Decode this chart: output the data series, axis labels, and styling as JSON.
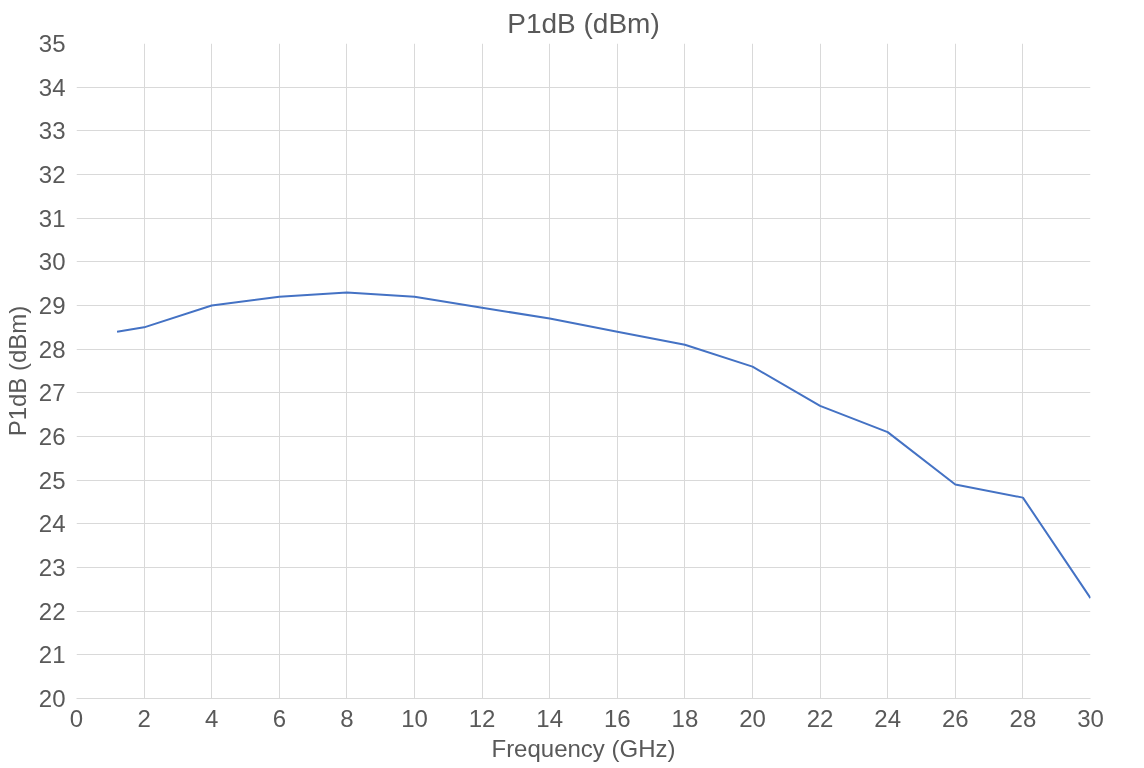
{
  "chart_data": {
    "type": "line",
    "title": "P1dB (dBm)",
    "xlabel": "Frequency (GHz)",
    "ylabel": "P1dB (dBm)",
    "x": [
      1.2,
      2,
      4,
      6,
      8,
      10,
      12,
      14,
      16,
      18,
      20,
      22,
      24,
      26,
      28,
      30
    ],
    "series": [
      {
        "color": "#4472c4",
        "values": [
          28.4,
          28.5,
          29.0,
          29.2,
          29.3,
          29.2,
          28.95,
          28.7,
          28.4,
          28.1,
          27.6,
          26.7,
          26.1,
          24.9,
          24.6,
          22.3
        ]
      }
    ],
    "xlim": [
      0,
      30
    ],
    "xticks": [
      0,
      2,
      4,
      6,
      8,
      10,
      12,
      14,
      16,
      18,
      20,
      22,
      24,
      26,
      28,
      30
    ],
    "ylim": [
      20,
      35
    ],
    "yticks": [
      20,
      21,
      22,
      23,
      24,
      25,
      26,
      27,
      28,
      29,
      30,
      31,
      32,
      33,
      34,
      35
    ],
    "grid": true,
    "marker": "none",
    "line_style": "solid"
  }
}
